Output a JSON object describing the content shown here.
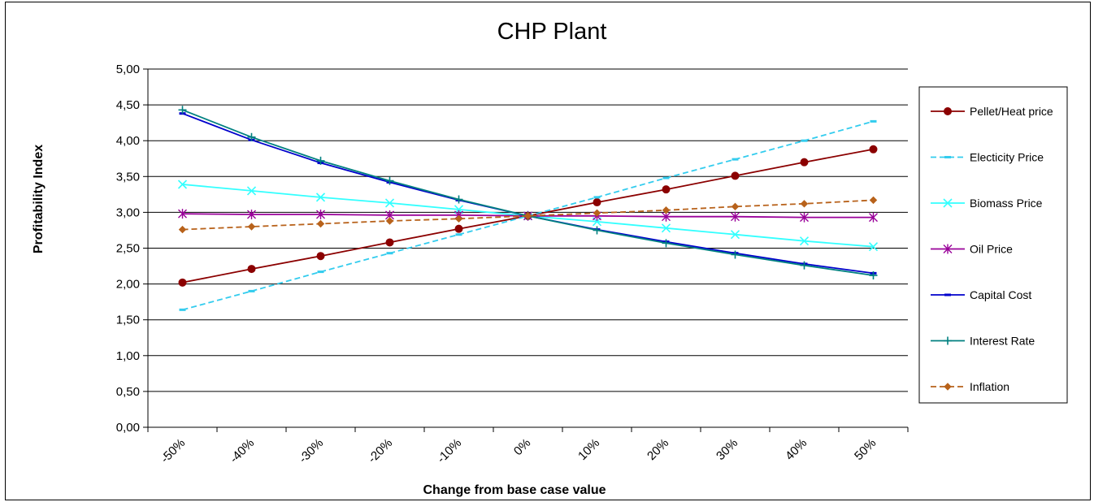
{
  "chart_data": {
    "type": "line",
    "title": "CHP Plant",
    "xlabel": "Change from base case value",
    "ylabel": "Profitability Index",
    "categories": [
      "-50%",
      "-40%",
      "-30%",
      "-20%",
      "-10%",
      "0%",
      "10%",
      "20%",
      "30%",
      "40%",
      "50%"
    ],
    "ylim": [
      0,
      5
    ],
    "yticks": [
      0,
      0.5,
      1,
      1.5,
      2,
      2.5,
      3,
      3.5,
      4,
      4.5,
      5
    ],
    "ytick_labels": [
      "0,00",
      "0,50",
      "1,00",
      "1,50",
      "2,00",
      "2,50",
      "3,00",
      "3,50",
      "4,00",
      "4,50",
      "5,00"
    ],
    "grid": "horizontal",
    "legend_position": "right",
    "series": [
      {
        "name": "Pellet/Heat price",
        "color": "#8B0000",
        "dash": "solid",
        "marker": "circle",
        "values": [
          2.02,
          2.21,
          2.39,
          2.58,
          2.77,
          2.95,
          3.14,
          3.32,
          3.51,
          3.7,
          3.88
        ]
      },
      {
        "name": "Electicity Price",
        "color": "#33CCEE",
        "dash": "dashed",
        "marker": "dash",
        "values": [
          1.64,
          1.9,
          2.17,
          2.43,
          2.69,
          2.95,
          3.21,
          3.48,
          3.74,
          4.0,
          4.27
        ]
      },
      {
        "name": "Biomass Price",
        "color": "#33FFFF",
        "dash": "solid",
        "marker": "x",
        "values": [
          3.39,
          3.3,
          3.21,
          3.13,
          3.04,
          2.95,
          2.87,
          2.78,
          2.69,
          2.6,
          2.52
        ]
      },
      {
        "name": "Oil Price",
        "color": "#990099",
        "dash": "solid",
        "marker": "asterisk",
        "values": [
          2.98,
          2.97,
          2.97,
          2.96,
          2.96,
          2.95,
          2.95,
          2.94,
          2.94,
          2.93,
          2.93
        ]
      },
      {
        "name": "Capital Cost",
        "color": "#0000CC",
        "dash": "solid",
        "marker": "dash",
        "values": [
          4.38,
          4.01,
          3.69,
          3.42,
          3.17,
          2.95,
          2.76,
          2.59,
          2.43,
          2.28,
          2.15
        ]
      },
      {
        "name": "Interest Rate",
        "color": "#008080",
        "dash": "solid",
        "marker": "plus",
        "values": [
          4.43,
          4.05,
          3.72,
          3.44,
          3.18,
          2.95,
          2.75,
          2.57,
          2.41,
          2.26,
          2.12
        ]
      },
      {
        "name": "Inflation",
        "color": "#B8621B",
        "dash": "dashed",
        "marker": "diamond",
        "values": [
          2.76,
          2.8,
          2.84,
          2.88,
          2.91,
          2.95,
          2.99,
          3.03,
          3.08,
          3.12,
          3.17
        ]
      }
    ]
  }
}
